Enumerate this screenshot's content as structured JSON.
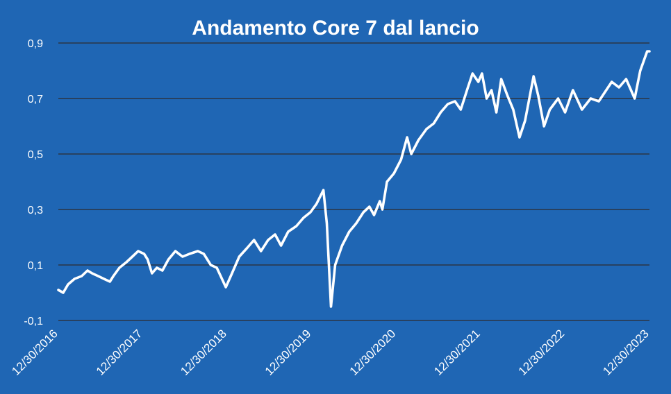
{
  "chart_data": {
    "type": "line",
    "title": "Andamento Core 7 dal lancio",
    "xlabel": "",
    "ylabel": "",
    "ylim": [
      -0.1,
      0.9
    ],
    "y_ticks": [
      {
        "value": -0.1,
        "label": "-0,1"
      },
      {
        "value": 0.1,
        "label": "0,1"
      },
      {
        "value": 0.3,
        "label": "0,3"
      },
      {
        "value": 0.5,
        "label": "0,5"
      },
      {
        "value": 0.7,
        "label": "0,7"
      },
      {
        "value": 0.9,
        "label": "0,9"
      }
    ],
    "x_ticks": [
      {
        "value": "2016-12-30",
        "label": "12/30/2016"
      },
      {
        "value": "2017-12-30",
        "label": "12/30/2017"
      },
      {
        "value": "2018-12-30",
        "label": "12/30/2018"
      },
      {
        "value": "2019-12-30",
        "label": "12/30/2019"
      },
      {
        "value": "2020-12-30",
        "label": "12/30/2020"
      },
      {
        "value": "2021-12-30",
        "label": "12/30/2021"
      },
      {
        "value": "2022-12-30",
        "label": "12/30/2022"
      },
      {
        "value": "2023-12-30",
        "label": "12/30/2023"
      }
    ],
    "xlim": [
      "2016-12-30",
      "2023-12-30"
    ],
    "grid": true,
    "legend": "none",
    "colors": {
      "background": "#1f66b4",
      "line": "#ffffff",
      "grid": "#2c3544"
    },
    "series": [
      {
        "points": [
          [
            "2016-12-30",
            0.01
          ],
          [
            "2017-01-20",
            0.0
          ],
          [
            "2017-02-10",
            0.03
          ],
          [
            "2017-03-10",
            0.05
          ],
          [
            "2017-04-10",
            0.06
          ],
          [
            "2017-05-05",
            0.08
          ],
          [
            "2017-05-25",
            0.07
          ],
          [
            "2017-06-20",
            0.06
          ],
          [
            "2017-07-15",
            0.05
          ],
          [
            "2017-08-10",
            0.04
          ],
          [
            "2017-08-25",
            0.06
          ],
          [
            "2017-09-20",
            0.09
          ],
          [
            "2017-10-20",
            0.11
          ],
          [
            "2017-11-15",
            0.13
          ],
          [
            "2017-12-10",
            0.15
          ],
          [
            "2018-01-05",
            0.14
          ],
          [
            "2018-01-20",
            0.12
          ],
          [
            "2018-02-08",
            0.07
          ],
          [
            "2018-03-01",
            0.09
          ],
          [
            "2018-03-25",
            0.08
          ],
          [
            "2018-04-20",
            0.12
          ],
          [
            "2018-05-20",
            0.15
          ],
          [
            "2018-06-20",
            0.13
          ],
          [
            "2018-07-20",
            0.14
          ],
          [
            "2018-08-25",
            0.15
          ],
          [
            "2018-09-20",
            0.14
          ],
          [
            "2018-10-20",
            0.1
          ],
          [
            "2018-11-15",
            0.09
          ],
          [
            "2018-12-24",
            0.02
          ],
          [
            "2019-01-20",
            0.07
          ],
          [
            "2019-02-20",
            0.13
          ],
          [
            "2019-03-25",
            0.16
          ],
          [
            "2019-04-25",
            0.19
          ],
          [
            "2019-05-25",
            0.15
          ],
          [
            "2019-06-25",
            0.19
          ],
          [
            "2019-07-25",
            0.21
          ],
          [
            "2019-08-20",
            0.17
          ],
          [
            "2019-09-20",
            0.22
          ],
          [
            "2019-10-25",
            0.24
          ],
          [
            "2019-11-25",
            0.27
          ],
          [
            "2019-12-25",
            0.29
          ],
          [
            "2020-01-20",
            0.32
          ],
          [
            "2020-02-19",
            0.37
          ],
          [
            "2020-03-05",
            0.25
          ],
          [
            "2020-03-23",
            -0.05
          ],
          [
            "2020-04-10",
            0.1
          ],
          [
            "2020-05-10",
            0.17
          ],
          [
            "2020-06-10",
            0.22
          ],
          [
            "2020-07-10",
            0.25
          ],
          [
            "2020-08-10",
            0.29
          ],
          [
            "2020-09-05",
            0.31
          ],
          [
            "2020-09-25",
            0.28
          ],
          [
            "2020-10-20",
            0.33
          ],
          [
            "2020-10-31",
            0.3
          ],
          [
            "2020-11-20",
            0.4
          ],
          [
            "2020-12-20",
            0.43
          ],
          [
            "2021-01-20",
            0.48
          ],
          [
            "2021-02-15",
            0.56
          ],
          [
            "2021-03-05",
            0.5
          ],
          [
            "2021-04-05",
            0.55
          ],
          [
            "2021-05-10",
            0.59
          ],
          [
            "2021-06-10",
            0.61
          ],
          [
            "2021-07-10",
            0.65
          ],
          [
            "2021-08-10",
            0.68
          ],
          [
            "2021-09-10",
            0.69
          ],
          [
            "2021-10-05",
            0.66
          ],
          [
            "2021-11-05",
            0.74
          ],
          [
            "2021-11-25",
            0.79
          ],
          [
            "2021-12-20",
            0.76
          ],
          [
            "2022-01-05",
            0.79
          ],
          [
            "2022-01-25",
            0.7
          ],
          [
            "2022-02-15",
            0.73
          ],
          [
            "2022-03-08",
            0.65
          ],
          [
            "2022-03-29",
            0.77
          ],
          [
            "2022-04-25",
            0.71
          ],
          [
            "2022-05-20",
            0.66
          ],
          [
            "2022-06-16",
            0.56
          ],
          [
            "2022-07-10",
            0.62
          ],
          [
            "2022-08-16",
            0.78
          ],
          [
            "2022-09-05",
            0.71
          ],
          [
            "2022-09-30",
            0.6
          ],
          [
            "2022-10-25",
            0.66
          ],
          [
            "2022-11-30",
            0.7
          ],
          [
            "2022-12-30",
            0.65
          ],
          [
            "2023-02-02",
            0.73
          ],
          [
            "2023-03-13",
            0.66
          ],
          [
            "2023-04-20",
            0.7
          ],
          [
            "2023-05-25",
            0.69
          ],
          [
            "2023-07-20",
            0.76
          ],
          [
            "2023-08-20",
            0.74
          ],
          [
            "2023-09-20",
            0.77
          ],
          [
            "2023-10-27",
            0.7
          ],
          [
            "2023-11-20",
            0.8
          ],
          [
            "2023-12-20",
            0.87
          ],
          [
            "2023-12-30",
            0.87
          ]
        ]
      }
    ]
  }
}
